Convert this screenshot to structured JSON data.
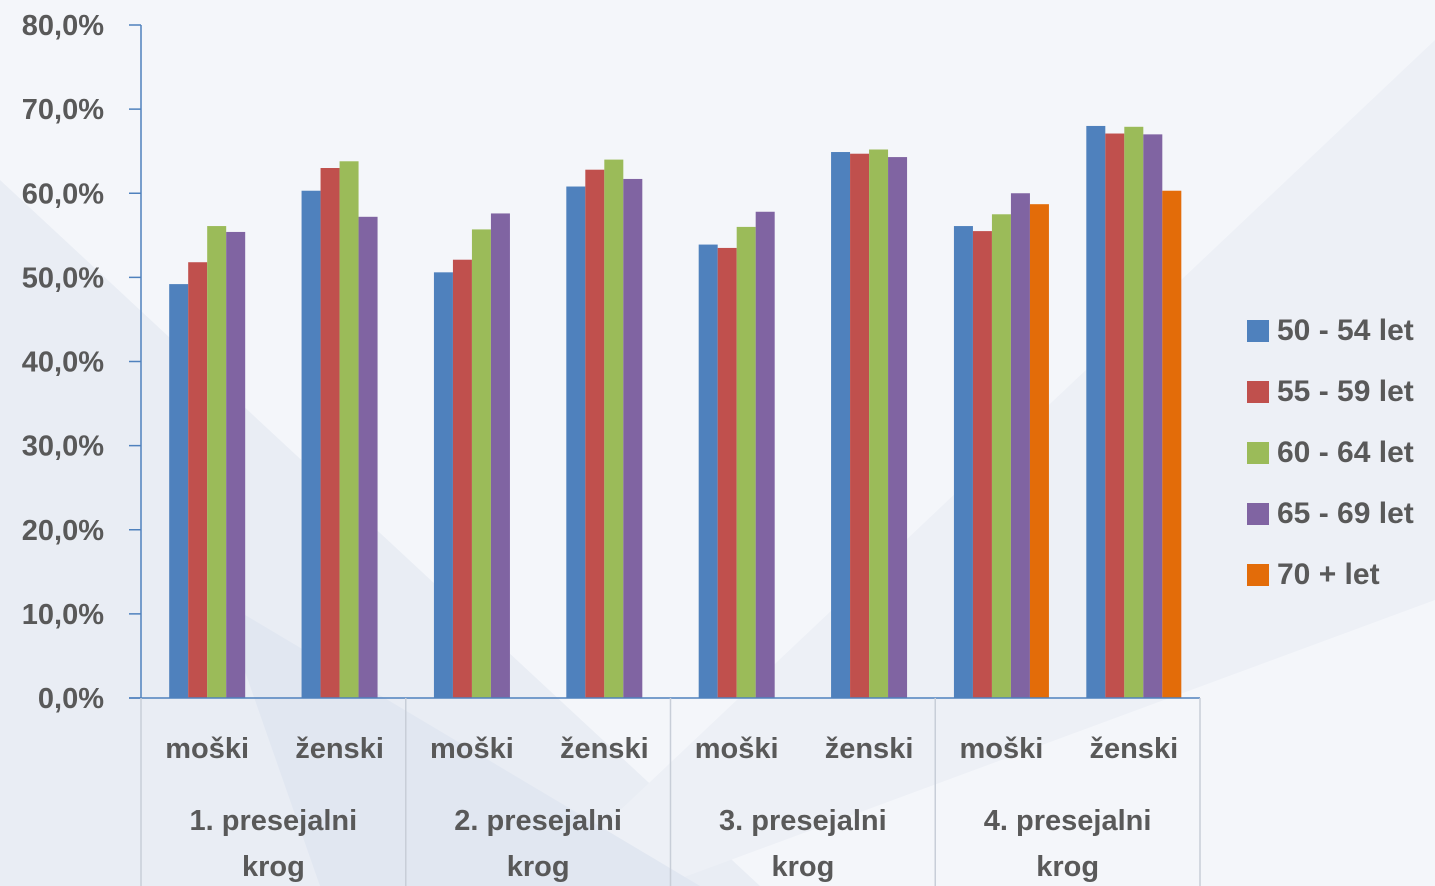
{
  "chart_data": {
    "type": "bar",
    "y_tick_labels": [
      "0,0%",
      "10,0%",
      "20,0%",
      "30,0%",
      "40,0%",
      "50,0%",
      "60,0%",
      "70,0%",
      "80,0%"
    ],
    "ylim": [
      0,
      80
    ],
    "groups": [
      {
        "label_lines": [
          "1. presejalni",
          "krog"
        ],
        "categories": [
          "moški",
          "ženski"
        ]
      },
      {
        "label_lines": [
          "2. presejalni",
          "krog"
        ],
        "categories": [
          "moški",
          "ženski"
        ]
      },
      {
        "label_lines": [
          "3. presejalni",
          "krog"
        ],
        "categories": [
          "moški",
          "ženski"
        ]
      },
      {
        "label_lines": [
          "4. presejalni",
          "krog"
        ],
        "categories": [
          "moški",
          "ženski"
        ]
      }
    ],
    "categories": [
      "moški",
      "ženski",
      "moški",
      "ženski",
      "moški",
      "ženski",
      "moški",
      "ženski"
    ],
    "series": [
      {
        "name": "50 - 54 let",
        "color": "#4f81bd",
        "values": [
          49.2,
          60.3,
          50.6,
          60.8,
          53.9,
          64.9,
          56.1,
          68.0
        ]
      },
      {
        "name": "55 - 59 let",
        "color": "#c0504d",
        "values": [
          51.8,
          63.0,
          52.1,
          62.8,
          53.5,
          64.7,
          55.5,
          67.1
        ]
      },
      {
        "name": "60 - 64 let",
        "color": "#9bbb59",
        "values": [
          56.1,
          63.8,
          55.7,
          64.0,
          56.0,
          65.2,
          57.5,
          67.9
        ]
      },
      {
        "name": "65 - 69 let",
        "color": "#8064a2",
        "values": [
          55.4,
          57.2,
          57.6,
          61.7,
          57.8,
          64.3,
          60.0,
          67.0
        ]
      },
      {
        "name": "70 + let",
        "color": "#e36c09",
        "values": [
          null,
          null,
          null,
          null,
          null,
          null,
          58.7,
          60.3
        ]
      }
    ],
    "grid": false,
    "legend_position": "right"
  }
}
